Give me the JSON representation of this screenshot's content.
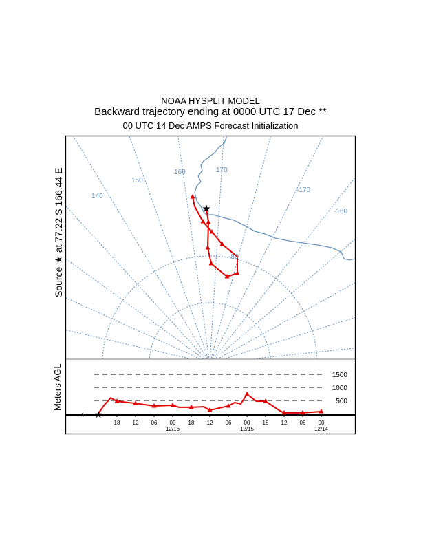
{
  "header": {
    "line1": "NOAA HYSPLIT MODEL",
    "line2": "Backward trajectory ending at 0000 UTC 17 Dec **",
    "line3": "00 UTC 14 Dec    AMPS  Forecast Initialization"
  },
  "map": {
    "source_label": "Source ★ at  77.22 S  166.44 E",
    "meridian_labels": [
      "140",
      "150",
      "160",
      "170",
      "-170",
      "-160"
    ],
    "latitude_label": "-80",
    "colors": {
      "grid": "#6a93bd",
      "coast": "#6a93bd",
      "trajectory": "#e00000",
      "source": "#000000"
    }
  },
  "chart_data": {
    "type": "line",
    "ylabel": "Meters AGL",
    "yticks": [
      "500",
      "1000",
      "1500"
    ],
    "ylim": [
      0,
      1600
    ],
    "start_height_label": "4",
    "xtick_labels": [
      "18",
      "12",
      "06",
      "00",
      "18",
      "12",
      "06",
      "00",
      "18",
      "12",
      "06",
      "00"
    ],
    "date_labels": [
      "12/16",
      "12/15",
      "12/14"
    ],
    "series": [
      {
        "hours_back": [
          0,
          2,
          4,
          6,
          12,
          18,
          24,
          26,
          30,
          34,
          36,
          42,
          44,
          46,
          48,
          51,
          54,
          59,
          60,
          66,
          72
        ],
        "height_m": [
          4,
          340,
          600,
          470,
          390,
          290,
          315,
          240,
          240,
          260,
          130,
          290,
          420,
          370,
          740,
          470,
          470,
          80,
          30,
          30,
          80
        ]
      }
    ]
  }
}
